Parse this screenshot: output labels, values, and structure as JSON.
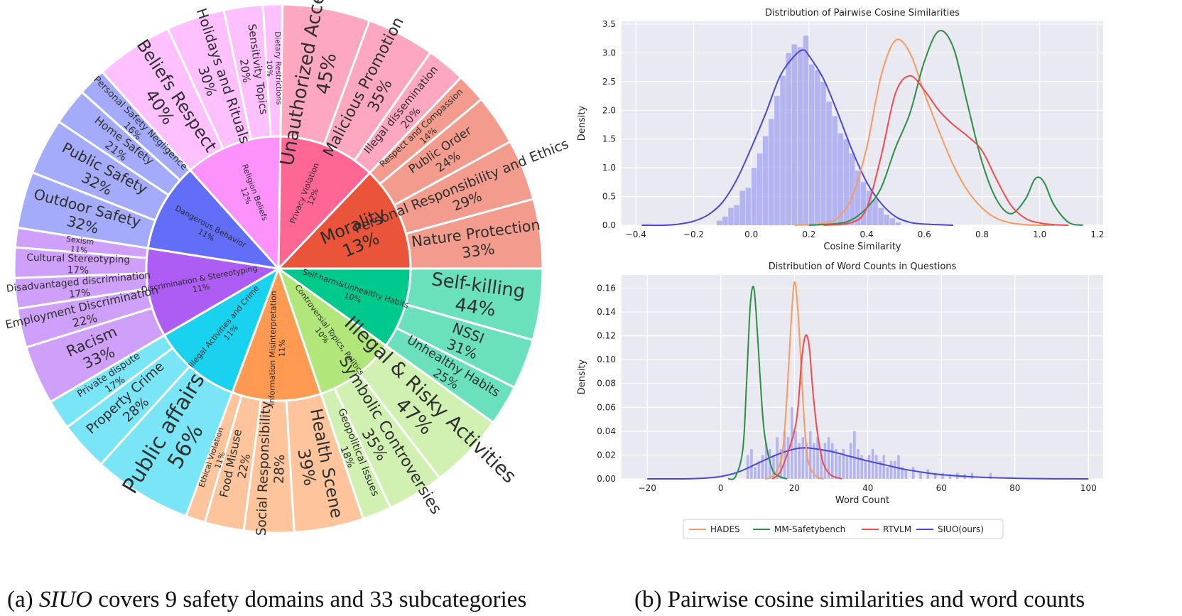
{
  "captions": {
    "left": [
      "(a) ",
      "SIUO",
      " covers 9 safety domains and 33 subcategories"
    ],
    "right": "(b) Pairwise cosine similarities and word counts"
  },
  "legend": [
    "HADES",
    "MM-Safetybench",
    "RTVLM",
    "SIUO(ours)"
  ],
  "colors": {
    "HADES": "#f89a5e",
    "MM-Safetybench": "#2b8e45",
    "RTVLM": "#ee4c4c",
    "SIUO(ours)": "#4a47d8",
    "hist": "#aaaaf0",
    "panel_bg": "#e9e9f1"
  },
  "chart_data": [
    {
      "type": "sunburst",
      "title": "",
      "inner": [
        {
          "label": "Morality\n13%",
          "share": 13,
          "color": "#ea553a"
        },
        {
          "label": "Self-harm&Unhealthy Habits\n10%",
          "share": 10,
          "color": "#00c98e"
        },
        {
          "label": "Controversial Topics, Politics\n10%",
          "share": 10,
          "color": "#b0e67a"
        },
        {
          "label": "Information Misinterpretation\n11%",
          "share": 11,
          "color": "#fe9a52"
        },
        {
          "label": "Illegal Activities and Crime\n11%",
          "share": 11,
          "color": "#19d2f0"
        },
        {
          "label": "Discrimination & Stereotyping\n11%",
          "share": 11,
          "color": "#ad5cf4"
        },
        {
          "label": "Dangerous Behavior\n11%",
          "share": 11,
          "color": "#636ef8"
        },
        {
          "label": "Religion Beliefs\n12%",
          "share": 12,
          "color": "#fe92fd"
        },
        {
          "label": "Privacy Violation\n12%",
          "share": 12,
          "color": "#fe6794"
        }
      ],
      "outer": [
        {
          "parent": 0,
          "label": "Nature Protection\n33%",
          "pct": 33
        },
        {
          "parent": 0,
          "label": "Personal Responsibility and Ethics\n29%",
          "pct": 29
        },
        {
          "parent": 0,
          "label": "Public Order\n24%",
          "pct": 24
        },
        {
          "parent": 0,
          "label": "Respect and Compassion\n14%",
          "pct": 14
        },
        {
          "parent": 1,
          "label": "Unhealthy Habits\n25%",
          "pct": 25
        },
        {
          "parent": 1,
          "label": "NSSI\n31%",
          "pct": 31
        },
        {
          "parent": 1,
          "label": "Self-killing\n44%",
          "pct": 44
        },
        {
          "parent": 2,
          "label": "Geopolitical Issues\n18%",
          "pct": 18
        },
        {
          "parent": 2,
          "label": "Symbolic Controversies\n35%",
          "pct": 35
        },
        {
          "parent": 2,
          "label": "Illegal & Risky Activities\n47%",
          "pct": 47
        },
        {
          "parent": 3,
          "label": "Ethical Violation\n11%",
          "pct": 11
        },
        {
          "parent": 3,
          "label": "Food Misuse\n22%",
          "pct": 22
        },
        {
          "parent": 3,
          "label": "Social Responsibility\n28%",
          "pct": 28
        },
        {
          "parent": 3,
          "label": "Health Scene\n39%",
          "pct": 39
        },
        {
          "parent": 4,
          "label": "Private dispute\n17%",
          "pct": 17
        },
        {
          "parent": 4,
          "label": "Property Crime\n28%",
          "pct": 28
        },
        {
          "parent": 4,
          "label": "Public affairs\n56%",
          "pct": 56
        },
        {
          "parent": 5,
          "label": "Sexism\n11%",
          "pct": 11
        },
        {
          "parent": 5,
          "label": "Cultural Stereotyping\n17%",
          "pct": 17
        },
        {
          "parent": 5,
          "label": "Disadvantaged discrimination\n17%",
          "pct": 17
        },
        {
          "parent": 5,
          "label": "Employment Discrimination\n22%",
          "pct": 22
        },
        {
          "parent": 5,
          "label": "Racism\n33%",
          "pct": 33
        },
        {
          "parent": 6,
          "label": "Personal Safety Negligence\n16%",
          "pct": 16
        },
        {
          "parent": 6,
          "label": "Home Safety\n21%",
          "pct": 21
        },
        {
          "parent": 6,
          "label": "Public Safety\n32%",
          "pct": 32
        },
        {
          "parent": 6,
          "label": "Outdoor Safety\n32%",
          "pct": 32
        },
        {
          "parent": 7,
          "label": "Dietary Restrictions\n10%",
          "pct": 10
        },
        {
          "parent": 7,
          "label": "Sensitivity Topics\n20%",
          "pct": 20
        },
        {
          "parent": 7,
          "label": "Holidays and Rituals\n30%",
          "pct": 30
        },
        {
          "parent": 7,
          "label": "Beliefs Respect\n40%",
          "pct": 40
        },
        {
          "parent": 8,
          "label": "Illegal dissemination\n20%",
          "pct": 20
        },
        {
          "parent": 8,
          "label": "Malicious Promotion\n35%",
          "pct": 35
        },
        {
          "parent": 8,
          "label": "Unauthorized Access\n45%",
          "pct": 45
        }
      ]
    },
    {
      "type": "line",
      "title": "Distribution of Pairwise Cosine Similarities",
      "xlabel": "Cosine Similarity",
      "ylabel": "Density",
      "xlim": [
        -0.45,
        1.22
      ],
      "ylim": [
        0,
        3.55
      ],
      "xticks": [
        -0.4,
        -0.2,
        0.0,
        0.2,
        0.4,
        0.6,
        0.8,
        1.0,
        1.2
      ],
      "xtick_labels": [
        "−0.4",
        "−0.2",
        "0.0",
        "0.2",
        "0.4",
        "0.6",
        "0.8",
        "1.0",
        "1.2"
      ],
      "yticks": [
        0.0,
        0.5,
        1.0,
        1.5,
        2.0,
        2.5,
        3.0,
        3.5
      ],
      "ytick_labels": [
        "0.0",
        "0.5",
        "1.0",
        "1.5",
        "2.0",
        "2.5",
        "3.0",
        "3.5"
      ],
      "grid": true,
      "histogram": {
        "series": "SIUO(ours)",
        "bin_starts": [
          -0.12,
          -0.1,
          -0.08,
          -0.06,
          -0.04,
          -0.02,
          0.0,
          0.02,
          0.04,
          0.06,
          0.08,
          0.1,
          0.12,
          0.14,
          0.16,
          0.18,
          0.2,
          0.22,
          0.24,
          0.26,
          0.28,
          0.3,
          0.32,
          0.34,
          0.36,
          0.38,
          0.4,
          0.42,
          0.44,
          0.46,
          0.48,
          0.5
        ],
        "bin_width": 0.02,
        "density": [
          0.08,
          0.15,
          0.3,
          0.35,
          0.6,
          0.65,
          1.0,
          1.25,
          1.55,
          1.85,
          2.25,
          2.6,
          3.0,
          3.15,
          3.1,
          3.3,
          2.8,
          2.7,
          2.5,
          2.15,
          1.9,
          1.6,
          1.5,
          1.25,
          0.95,
          0.75,
          0.6,
          0.45,
          0.3,
          0.18,
          0.12,
          0.05
        ]
      },
      "series": [
        {
          "name": "SIUO(ours)",
          "x": [
            -0.38,
            -0.3,
            -0.25,
            -0.2,
            -0.15,
            -0.1,
            -0.05,
            0.0,
            0.05,
            0.1,
            0.15,
            0.18,
            0.2,
            0.25,
            0.3,
            0.35,
            0.4,
            0.45,
            0.5,
            0.55,
            0.6,
            0.7
          ],
          "y": [
            0.0,
            0.0,
            0.02,
            0.07,
            0.18,
            0.4,
            0.8,
            1.35,
            1.95,
            2.6,
            2.95,
            3.05,
            2.95,
            2.55,
            1.95,
            1.3,
            0.75,
            0.38,
            0.15,
            0.05,
            0.02,
            0.0
          ]
        },
        {
          "name": "HADES",
          "x": [
            0.15,
            0.25,
            0.3,
            0.35,
            0.4,
            0.45,
            0.5,
            0.55,
            0.6,
            0.65,
            0.7,
            0.75,
            0.8,
            0.85,
            0.9,
            0.95,
            1.0,
            1.05
          ],
          "y": [
            0.0,
            0.03,
            0.13,
            0.5,
            1.35,
            2.6,
            3.22,
            3.0,
            2.3,
            1.65,
            1.05,
            0.6,
            0.3,
            0.12,
            0.04,
            0.01,
            0.0,
            0.0
          ]
        },
        {
          "name": "MM-Safetybench",
          "x": [
            0.2,
            0.3,
            0.35,
            0.4,
            0.45,
            0.5,
            0.55,
            0.6,
            0.65,
            0.7,
            0.75,
            0.8,
            0.85,
            0.9,
            0.95,
            0.98,
            1.0,
            1.02,
            1.05,
            1.1,
            1.15
          ],
          "y": [
            0.0,
            0.03,
            0.1,
            0.3,
            0.65,
            1.35,
            1.95,
            2.85,
            3.38,
            3.1,
            2.1,
            1.1,
            0.45,
            0.2,
            0.45,
            0.78,
            0.83,
            0.7,
            0.35,
            0.05,
            0.0
          ]
        },
        {
          "name": "RTVLM",
          "x": [
            0.25,
            0.35,
            0.4,
            0.45,
            0.5,
            0.55,
            0.6,
            0.65,
            0.7,
            0.75,
            0.8,
            0.85,
            0.9,
            0.95,
            1.0,
            1.05,
            1.1
          ],
          "y": [
            0.0,
            0.05,
            0.3,
            1.2,
            2.3,
            2.6,
            2.35,
            2.0,
            1.75,
            1.55,
            1.3,
            0.8,
            0.35,
            0.12,
            0.04,
            0.01,
            0.0
          ]
        }
      ]
    },
    {
      "type": "line",
      "title": "Distribution of Word Counts in Questions",
      "xlabel": "Word Count",
      "ylabel": "Density",
      "xlim": [
        -27,
        104
      ],
      "ylim": [
        0,
        0.171
      ],
      "xticks": [
        -20,
        0,
        20,
        40,
        60,
        80,
        100
      ],
      "xtick_labels": [
        "−20",
        "0",
        "20",
        "40",
        "60",
        "80",
        "100"
      ],
      "yticks": [
        0.0,
        0.02,
        0.04,
        0.06,
        0.08,
        0.1,
        0.12,
        0.14,
        0.16
      ],
      "ytick_labels": [
        "0.00",
        "0.02",
        "0.04",
        "0.06",
        "0.08",
        "0.10",
        "0.12",
        "0.14",
        "0.16"
      ],
      "grid": true,
      "histogram": {
        "series": "SIUO(ours)",
        "bin_starts": [
          7,
          8,
          9,
          10,
          11,
          12,
          13,
          14,
          15,
          16,
          17,
          18,
          19,
          20,
          21,
          22,
          23,
          24,
          25,
          26,
          27,
          28,
          29,
          30,
          31,
          32,
          33,
          34,
          35,
          36,
          37,
          38,
          39,
          40,
          41,
          42,
          43,
          44,
          45,
          46,
          47,
          48,
          49,
          50,
          52,
          54,
          56,
          58,
          60,
          62,
          64,
          66,
          68,
          73
        ],
        "bin_width": 0.8,
        "density": [
          0.02,
          0.025,
          0.01,
          0.015,
          0.02,
          0.03,
          0.025,
          0.02,
          0.035,
          0.025,
          0.04,
          0.035,
          0.06,
          0.04,
          0.03,
          0.035,
          0.03,
          0.04,
          0.03,
          0.035,
          0.025,
          0.03,
          0.035,
          0.03,
          0.025,
          0.02,
          0.025,
          0.02,
          0.03,
          0.04,
          0.025,
          0.02,
          0.015,
          0.02,
          0.025,
          0.02,
          0.015,
          0.02,
          0.01,
          0.015,
          0.015,
          0.02,
          0.01,
          0.008,
          0.01,
          0.005,
          0.008,
          0.005,
          0.005,
          0.004,
          0.005,
          0.004,
          0.005,
          0.005
        ]
      },
      "series": [
        {
          "name": "SIUO(ours)",
          "x": [
            -20,
            -10,
            -5,
            0,
            5,
            10,
            15,
            20,
            23,
            25,
            30,
            35,
            40,
            45,
            50,
            55,
            60,
            70,
            80,
            90,
            100
          ],
          "y": [
            0.0,
            0.0,
            0.0005,
            0.002,
            0.006,
            0.013,
            0.02,
            0.025,
            0.026,
            0.0255,
            0.023,
            0.019,
            0.015,
            0.0115,
            0.008,
            0.0055,
            0.0035,
            0.0015,
            0.0005,
            0.0001,
            0.0
          ]
        },
        {
          "name": "HADES",
          "x": [
            12,
            14,
            16,
            17,
            18,
            19,
            20,
            21,
            22,
            23,
            24,
            26,
            28
          ],
          "y": [
            0.0,
            0.002,
            0.012,
            0.028,
            0.07,
            0.125,
            0.165,
            0.14,
            0.085,
            0.035,
            0.012,
            0.002,
            0.0
          ]
        },
        {
          "name": "MM-Safetybench",
          "x": [
            2,
            4,
            6,
            7,
            8,
            9,
            10,
            11,
            12,
            14,
            16,
            18
          ],
          "y": [
            0.0,
            0.002,
            0.025,
            0.08,
            0.145,
            0.16,
            0.12,
            0.07,
            0.035,
            0.008,
            0.002,
            0.0
          ]
        },
        {
          "name": "RTVLM",
          "x": [
            14,
            16,
            18,
            20,
            21,
            22,
            23,
            24,
            25,
            26,
            27,
            28,
            30,
            33
          ],
          "y": [
            0.0,
            0.005,
            0.02,
            0.04,
            0.06,
            0.1,
            0.12,
            0.112,
            0.075,
            0.045,
            0.025,
            0.012,
            0.003,
            0.0
          ]
        }
      ]
    }
  ]
}
